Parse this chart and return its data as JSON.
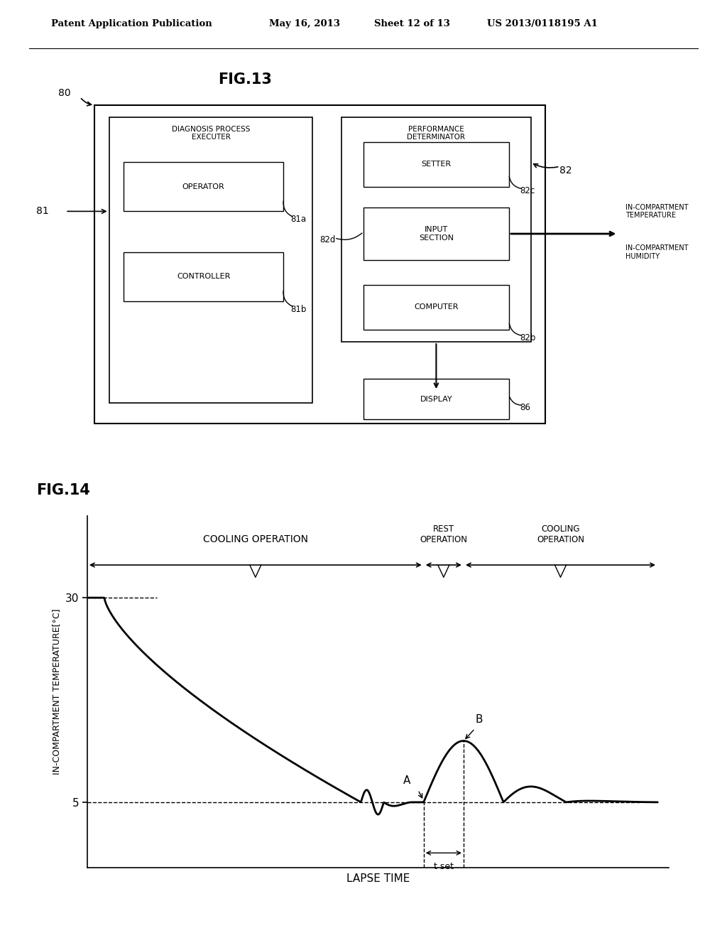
{
  "bg_color": "#ffffff",
  "header_text": "Patent Application Publication",
  "header_date": "May 16, 2013",
  "header_sheet": "Sheet 12 of 13",
  "header_patent": "US 2013/0118195 A1",
  "fig13_title": "FIG.13",
  "fig14_title": "FIG.14",
  "ylabel14": "IN-COMPARTMENT TEMPERATURE[°C]",
  "xlabel14": "LAPSE TIME",
  "cooling_op": "COOLING OPERATION",
  "rest_op": "REST\nOPERATION",
  "cooling_op2": "COOLING\nOPERATION",
  "label_A": "A",
  "label_B": "B",
  "label_tset": "t set",
  "label_80": "80",
  "label_81": "81",
  "label_81a": "81a",
  "label_81b": "81b",
  "label_82": "82",
  "label_82b": "82b",
  "label_82c": "82c",
  "label_82d": "82d",
  "label_86": "86",
  "box_diag_proc": "DIAGNOSIS PROCESS\nEXECUTER",
  "box_perf_det": "PERFORMANCE\nDETERMINATOR",
  "box_operator": "OPERATOR",
  "box_controller": "CONTROLLER",
  "box_setter": "SETTER",
  "box_input": "INPUT\nSECTION",
  "box_computer": "COMPUTER",
  "box_display": "DISPLAY",
  "text_in_comp_temp": "IN-COMPARTMENT\nTEMPERATURE",
  "text_in_comp_hum": "IN-COMPARTMENT\nHUMIDITY"
}
